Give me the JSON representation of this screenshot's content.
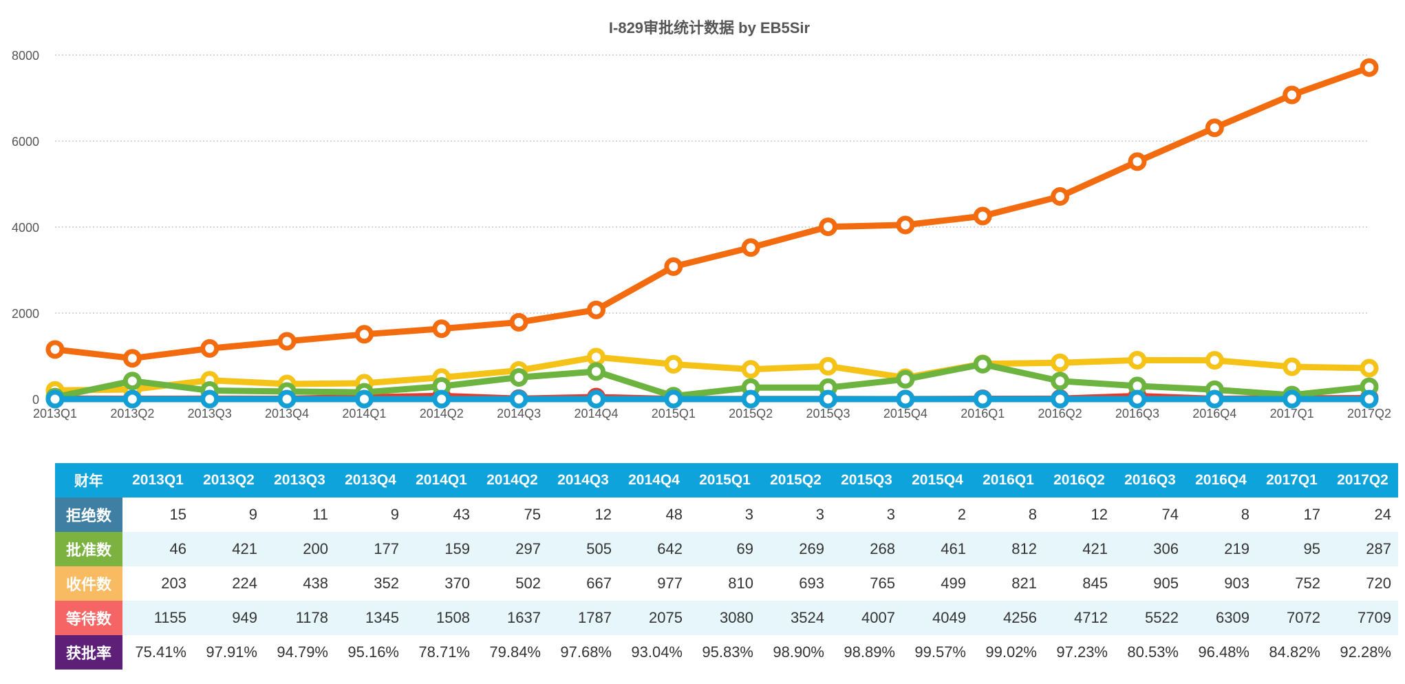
{
  "chart_data": {
    "type": "line",
    "title": "I-829审批统计数据 by EB5Sir",
    "categories": [
      "2013Q1",
      "2013Q2",
      "2013Q3",
      "2013Q4",
      "2014Q1",
      "2014Q2",
      "2014Q3",
      "2014Q4",
      "2015Q1",
      "2015Q2",
      "2015Q3",
      "2015Q4",
      "2016Q1",
      "2016Q2",
      "2016Q3",
      "2016Q4",
      "2017Q1",
      "2017Q2"
    ],
    "ylim": [
      0,
      8000
    ],
    "yticks": [
      0,
      2000,
      4000,
      6000,
      8000
    ],
    "grid": true,
    "series": [
      {
        "name": "拒绝数",
        "color": "#e8392b",
        "values": [
          15,
          9,
          11,
          9,
          43,
          75,
          12,
          48,
          3,
          3,
          3,
          2,
          8,
          12,
          74,
          8,
          17,
          24
        ]
      },
      {
        "name": "批准数",
        "color": "#6db33f",
        "values": [
          46,
          421,
          200,
          177,
          159,
          297,
          505,
          642,
          69,
          269,
          268,
          461,
          812,
          421,
          306,
          219,
          95,
          287
        ]
      },
      {
        "name": "收件数",
        "color": "#f5c218",
        "values": [
          203,
          224,
          438,
          352,
          370,
          502,
          667,
          977,
          810,
          693,
          765,
          499,
          821,
          845,
          905,
          903,
          752,
          720
        ]
      },
      {
        "name": "等待数",
        "color": "#f36b0f",
        "values": [
          1155,
          949,
          1178,
          1345,
          1508,
          1637,
          1787,
          2075,
          3080,
          3524,
          4007,
          4049,
          4256,
          4712,
          5522,
          6309,
          7072,
          7709
        ]
      },
      {
        "name": "获批率",
        "color": "#139ed6",
        "values": [
          0.7541,
          0.9791,
          0.9479,
          0.9516,
          0.7871,
          0.7984,
          0.9768,
          0.9304,
          0.9583,
          0.989,
          0.9889,
          0.9957,
          0.9902,
          0.9723,
          0.8053,
          0.9648,
          0.8482,
          0.9228
        ]
      }
    ]
  },
  "table": {
    "corner": "财年",
    "header_color": "#0fa3dc",
    "rows": [
      {
        "label": "拒绝数",
        "color": "#3e7fa3",
        "cells": [
          "15",
          "9",
          "11",
          "9",
          "43",
          "75",
          "12",
          "48",
          "3",
          "3",
          "3",
          "2",
          "8",
          "12",
          "74",
          "8",
          "17",
          "24"
        ]
      },
      {
        "label": "批准数",
        "color": "#7cb340",
        "cells": [
          "46",
          "421",
          "200",
          "177",
          "159",
          "297",
          "505",
          "642",
          "69",
          "269",
          "268",
          "461",
          "812",
          "421",
          "306",
          "219",
          "95",
          "287"
        ]
      },
      {
        "label": "收件数",
        "color": "#f9bb61",
        "cells": [
          "203",
          "224",
          "438",
          "352",
          "370",
          "502",
          "667",
          "977",
          "810",
          "693",
          "765",
          "499",
          "821",
          "845",
          "905",
          "903",
          "752",
          "720"
        ]
      },
      {
        "label": "等待数",
        "color": "#f56565",
        "cells": [
          "1155",
          "949",
          "1178",
          "1345",
          "1508",
          "1637",
          "1787",
          "2075",
          "3080",
          "3524",
          "4007",
          "4049",
          "4256",
          "4712",
          "5522",
          "6309",
          "7072",
          "7709"
        ]
      },
      {
        "label": "获批率",
        "color": "#5e1f78",
        "cells": [
          "75.41%",
          "97.91%",
          "94.79%",
          "95.16%",
          "78.71%",
          "79.84%",
          "97.68%",
          "93.04%",
          "95.83%",
          "98.90%",
          "98.89%",
          "99.57%",
          "99.02%",
          "97.23%",
          "80.53%",
          "96.48%",
          "84.82%",
          "92.28%"
        ]
      }
    ]
  }
}
